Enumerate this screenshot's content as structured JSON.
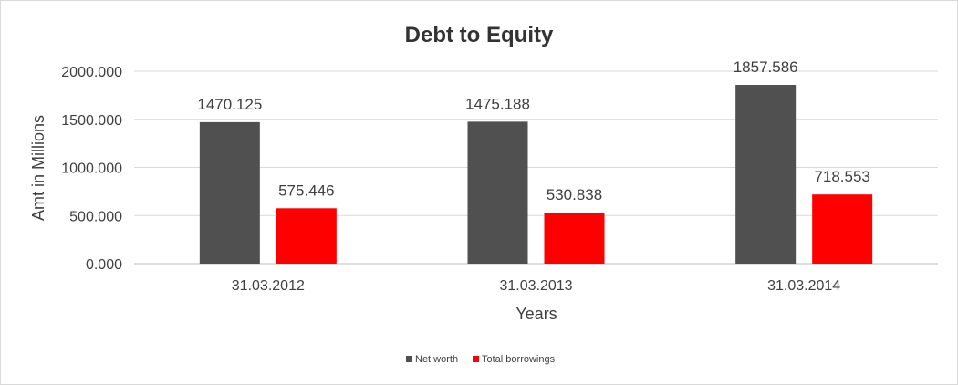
{
  "chart_data": {
    "type": "bar",
    "title": "Debt to Equity",
    "xlabel": "Years",
    "ylabel": "Amt in Millions",
    "categories": [
      "31.03.2012",
      "31.03.2013",
      "31.03.2014"
    ],
    "series": [
      {
        "name": "Net worth",
        "values": [
          1470.125,
          1475.188,
          1857.586
        ],
        "color": "#505050",
        "labels": [
          "1470.125",
          "1475.188",
          "1857.586"
        ]
      },
      {
        "name": "Total borrowings",
        "values": [
          575.446,
          530.838,
          718.553
        ],
        "color": "#ff0000",
        "labels": [
          "575.446",
          "530.838",
          "718.553"
        ]
      }
    ],
    "ylim": [
      0,
      2000
    ],
    "yticks": [
      0,
      500,
      1000,
      1500,
      2000
    ],
    "ytick_labels": [
      "0.000",
      "500.000",
      "1000.000",
      "1500.000",
      "2000.000"
    ],
    "grid": true,
    "legend": "bottom"
  }
}
